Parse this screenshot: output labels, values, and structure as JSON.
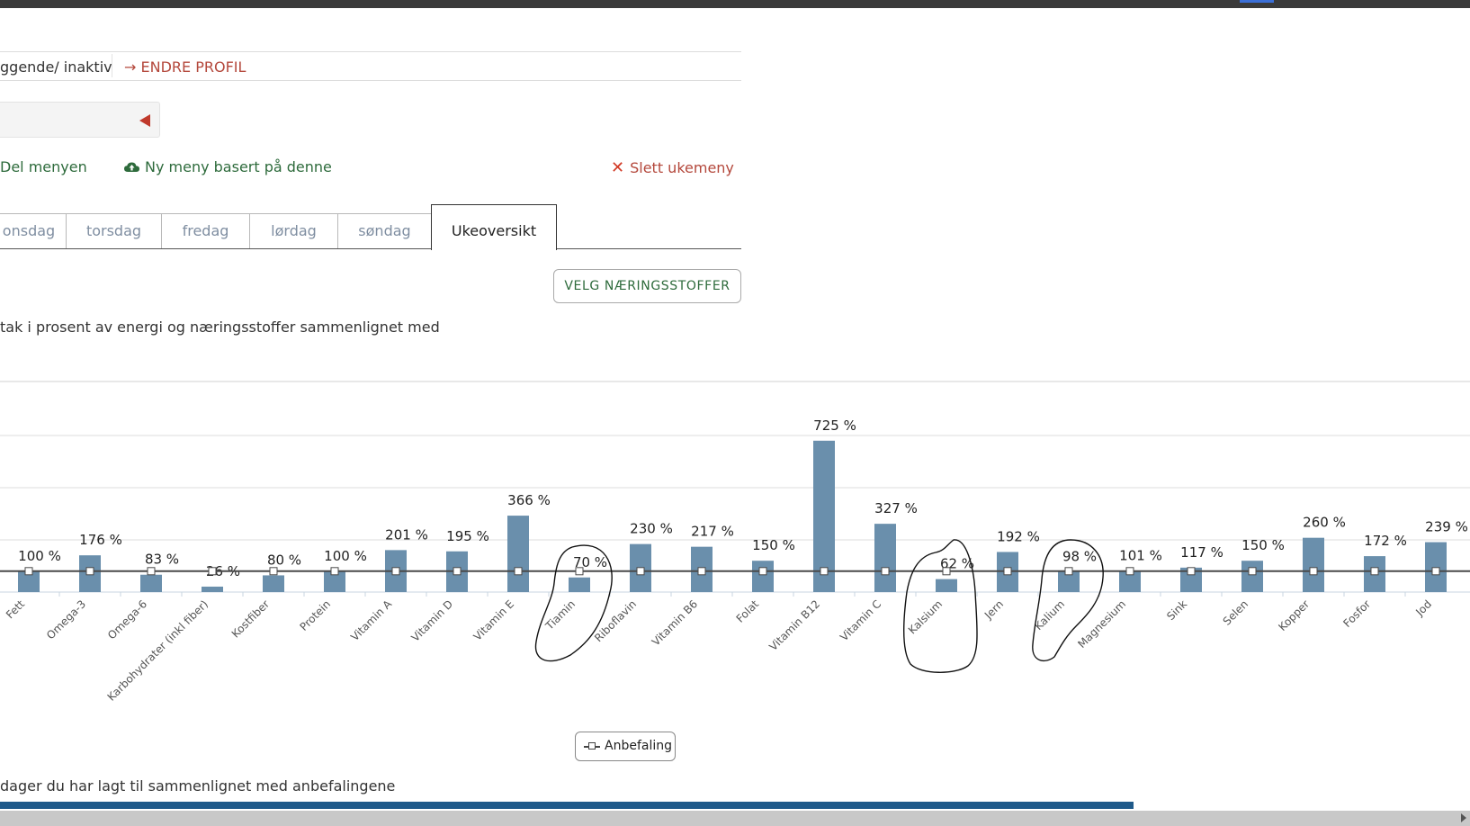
{
  "profile": {
    "status_text": "ggende/ inaktiv",
    "edit_link": "→ ENDRE PROFIL"
  },
  "actions": {
    "share": "Del menyen",
    "new_menu": "Ny meny basert på denne",
    "delete": "Slett ukemeny"
  },
  "tabs": [
    {
      "label": "onsdag",
      "active": false
    },
    {
      "label": "torsdag",
      "active": false
    },
    {
      "label": "fredag",
      "active": false
    },
    {
      "label": "lørdag",
      "active": false
    },
    {
      "label": "søndag",
      "active": false
    },
    {
      "label": "Ukeoversikt",
      "active": true
    }
  ],
  "velg_button": "VELG NÆRINGSSTOFFER",
  "intro_text": "tak i prosent av energi og næringsstoffer sammenlignet med",
  "legend_button": "Anbefaling",
  "footer_text": "dager du har lagt til sammenlignet med anbefalingene",
  "colors": {
    "bar": "#6a8fac",
    "link_red": "#b4483c",
    "action_green": "#2e6b3c",
    "progress": "#1f5a8a"
  },
  "chart_data": {
    "type": "bar",
    "categories": [
      "Fett",
      "Omega-3",
      "Omega-6",
      "Karbohydrater (inkl fiber)",
      "Kostfiber",
      "Protein",
      "Vitamin A",
      "Vitamin D",
      "Vitamin E",
      "Tiamin",
      "Riboflavin",
      "Vitamin B6",
      "Folat",
      "Vitamin B12",
      "Vitamin C",
      "Kalsium",
      "Jern",
      "Kalium",
      "Magnesium",
      "Sink",
      "Selen",
      "Kopper",
      "Fosfor",
      "Jod"
    ],
    "series": [
      {
        "values": [
          100,
          176,
          83,
          26,
          80,
          100,
          201,
          195,
          366,
          70,
          230,
          217,
          150,
          725,
          327,
          62,
          192,
          98,
          101,
          117,
          150,
          260,
          172,
          239
        ]
      },
      {
        "name": "Anbefaling",
        "values": [
          100,
          100,
          100,
          100,
          100,
          100,
          100,
          100,
          100,
          100,
          100,
          100,
          100,
          100,
          100,
          100,
          100,
          100,
          100,
          100,
          100,
          100,
          100,
          100
        ]
      }
    ],
    "data_labels": [
      "100 %",
      "176 %",
      "83 %",
      "26 %",
      "80 %",
      "100 %",
      "201 %",
      "195 %",
      "366 %",
      "70 %",
      "230 %",
      "217 %",
      "150 %",
      "725 %",
      "327 %",
      "62 %",
      "192 %",
      "98 %",
      "101 %",
      "117 %",
      "150 %",
      "260 %",
      "172 %",
      "239 %"
    ],
    "ylim": [
      0,
      750
    ],
    "grid": true,
    "highlighted": [
      "Tiamin",
      "Kalsium",
      "Kalium"
    ]
  }
}
